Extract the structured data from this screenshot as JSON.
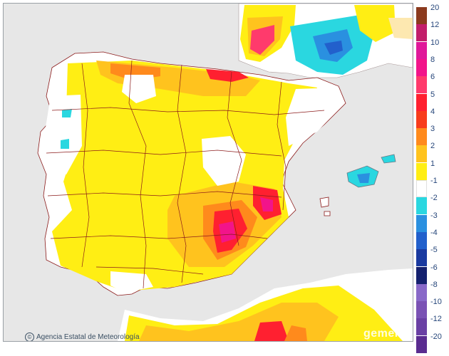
{
  "credit": {
    "symbol": "©",
    "text": "Agencia Estatal de Meteorología"
  },
  "watermark": "gemel",
  "legend": {
    "labels": [
      "20",
      "12",
      "10",
      "8",
      "6",
      "5",
      "4",
      "3",
      "2",
      "1",
      "-1",
      "-2",
      "-3",
      "-4",
      "-5",
      "-6",
      "-8",
      "-10",
      "-12",
      "-20"
    ],
    "colors": [
      "#8b3a1e",
      "#c21e6a",
      "#e0189a",
      "#f2148a",
      "#ff3a6c",
      "#ff2030",
      "#f83c1c",
      "#ff8a1c",
      "#ffc31e",
      "#ffee14",
      "#ffffff",
      "#2ad7e0",
      "#2a90e0",
      "#2260cc",
      "#1a3aa0",
      "#14206e",
      "#8868c8",
      "#7a52b4",
      "#6a40a4",
      "#5a2c90"
    ]
  },
  "map": {
    "land_color": "#ffffff",
    "sea_color": "#e7e7e7",
    "border_color": "#8b1a1a",
    "anomaly_colors": {
      "plus1": "#ffee14",
      "plus2": "#ffc31e",
      "plus3": "#ff8a1c",
      "plus5": "#ff2030",
      "plus6": "#ff3a6c",
      "plus8": "#f2148a",
      "minus2": "#2ad7e0",
      "minus3": "#2a90e0",
      "minus4": "#2260cc"
    }
  }
}
